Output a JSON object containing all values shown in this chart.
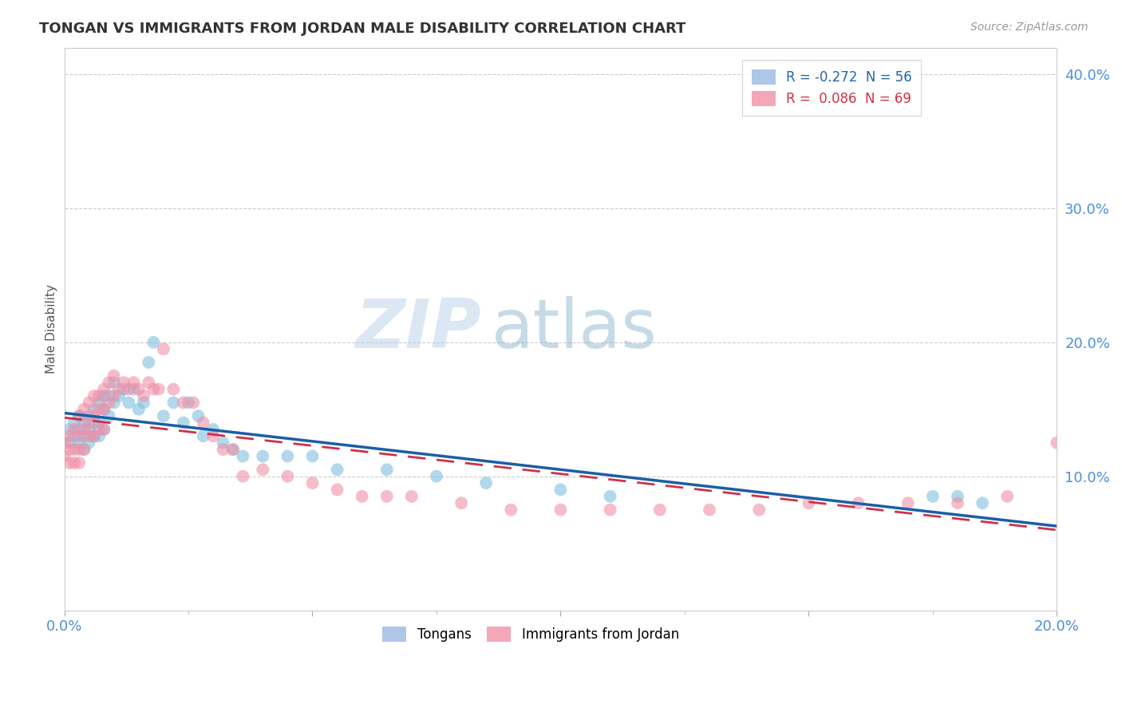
{
  "title": "TONGAN VS IMMIGRANTS FROM JORDAN MALE DISABILITY CORRELATION CHART",
  "source": "Source: ZipAtlas.com",
  "ylabel": "Male Disability",
  "xlim": [
    0.0,
    0.2
  ],
  "ylim": [
    0.0,
    0.42
  ],
  "watermark": "ZIPatlas",
  "legend_entries": [
    {
      "label": "R = -0.272  N = 56",
      "color": "#aec6e8"
    },
    {
      "label": "R =  0.086  N = 69",
      "color": "#f4a7b9"
    }
  ],
  "series1_name": "Tongans",
  "series1_color": "#7fbfdf",
  "series1_ec": "#5a9fc0",
  "series2_name": "Immigrants from Jordan",
  "series2_color": "#f090a8",
  "series2_ec": "#d06080",
  "trend1_color": "#1a5ea8",
  "trend2_color": "#d0304a",
  "series1_x": [
    0.001,
    0.001,
    0.002,
    0.002,
    0.003,
    0.003,
    0.003,
    0.004,
    0.004,
    0.004,
    0.005,
    0.005,
    0.005,
    0.006,
    0.006,
    0.006,
    0.007,
    0.007,
    0.007,
    0.008,
    0.008,
    0.008,
    0.009,
    0.009,
    0.01,
    0.01,
    0.011,
    0.012,
    0.013,
    0.014,
    0.015,
    0.016,
    0.017,
    0.018,
    0.02,
    0.022,
    0.024,
    0.025,
    0.027,
    0.028,
    0.03,
    0.032,
    0.034,
    0.036,
    0.04,
    0.045,
    0.05,
    0.055,
    0.065,
    0.075,
    0.085,
    0.1,
    0.11,
    0.175,
    0.18,
    0.185
  ],
  "series1_y": [
    0.135,
    0.125,
    0.14,
    0.13,
    0.145,
    0.135,
    0.125,
    0.14,
    0.13,
    0.12,
    0.145,
    0.135,
    0.125,
    0.15,
    0.14,
    0.13,
    0.155,
    0.14,
    0.13,
    0.16,
    0.15,
    0.135,
    0.16,
    0.145,
    0.17,
    0.155,
    0.16,
    0.165,
    0.155,
    0.165,
    0.15,
    0.155,
    0.185,
    0.2,
    0.145,
    0.155,
    0.14,
    0.155,
    0.145,
    0.13,
    0.135,
    0.125,
    0.12,
    0.115,
    0.115,
    0.115,
    0.115,
    0.105,
    0.105,
    0.1,
    0.095,
    0.09,
    0.085,
    0.085,
    0.085,
    0.08
  ],
  "series2_x": [
    0.0,
    0.0,
    0.001,
    0.001,
    0.001,
    0.002,
    0.002,
    0.002,
    0.003,
    0.003,
    0.003,
    0.003,
    0.004,
    0.004,
    0.004,
    0.005,
    0.005,
    0.005,
    0.006,
    0.006,
    0.006,
    0.007,
    0.007,
    0.007,
    0.008,
    0.008,
    0.008,
    0.009,
    0.009,
    0.01,
    0.01,
    0.011,
    0.012,
    0.013,
    0.014,
    0.015,
    0.016,
    0.017,
    0.018,
    0.019,
    0.02,
    0.022,
    0.024,
    0.026,
    0.028,
    0.03,
    0.032,
    0.034,
    0.036,
    0.04,
    0.045,
    0.05,
    0.055,
    0.06,
    0.065,
    0.07,
    0.08,
    0.09,
    0.1,
    0.11,
    0.12,
    0.13,
    0.14,
    0.15,
    0.16,
    0.17,
    0.18,
    0.19,
    0.2
  ],
  "series2_y": [
    0.125,
    0.115,
    0.13,
    0.12,
    0.11,
    0.135,
    0.12,
    0.11,
    0.145,
    0.13,
    0.12,
    0.11,
    0.15,
    0.135,
    0.12,
    0.155,
    0.14,
    0.13,
    0.16,
    0.145,
    0.13,
    0.16,
    0.15,
    0.135,
    0.165,
    0.15,
    0.135,
    0.17,
    0.155,
    0.175,
    0.16,
    0.165,
    0.17,
    0.165,
    0.17,
    0.165,
    0.16,
    0.17,
    0.165,
    0.165,
    0.195,
    0.165,
    0.155,
    0.155,
    0.14,
    0.13,
    0.12,
    0.12,
    0.1,
    0.105,
    0.1,
    0.095,
    0.09,
    0.085,
    0.085,
    0.085,
    0.08,
    0.075,
    0.075,
    0.075,
    0.075,
    0.075,
    0.075,
    0.08,
    0.08,
    0.08,
    0.08,
    0.085,
    0.125
  ],
  "background_color": "#ffffff",
  "grid_color": "#cccccc"
}
